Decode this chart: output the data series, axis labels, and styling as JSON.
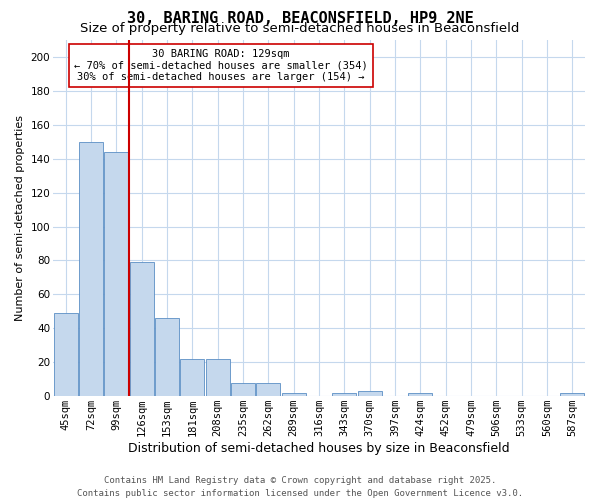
{
  "title1": "30, BARING ROAD, BEACONSFIELD, HP9 2NE",
  "title2": "Size of property relative to semi-detached houses in Beaconsfield",
  "xlabel": "Distribution of semi-detached houses by size in Beaconsfield",
  "ylabel": "Number of semi-detached properties",
  "categories": [
    "45sqm",
    "72sqm",
    "99sqm",
    "126sqm",
    "153sqm",
    "181sqm",
    "208sqm",
    "235sqm",
    "262sqm",
    "289sqm",
    "316sqm",
    "343sqm",
    "370sqm",
    "397sqm",
    "424sqm",
    "452sqm",
    "479sqm",
    "506sqm",
    "533sqm",
    "560sqm",
    "587sqm"
  ],
  "values": [
    49,
    150,
    144,
    79,
    46,
    22,
    22,
    8,
    8,
    2,
    0,
    2,
    3,
    0,
    2,
    0,
    0,
    0,
    0,
    0,
    2
  ],
  "bar_color": "#c5d8ed",
  "bar_edge_color": "#5b8ec4",
  "vline_color": "#cc0000",
  "vline_x": 2.5,
  "annotation_text": "30 BARING ROAD: 129sqm\n← 70% of semi-detached houses are smaller (354)\n30% of semi-detached houses are larger (154) →",
  "annotation_box_color": "#cc0000",
  "ylim": [
    0,
    210
  ],
  "yticks": [
    0,
    20,
    40,
    60,
    80,
    100,
    120,
    140,
    160,
    180,
    200
  ],
  "footer": "Contains HM Land Registry data © Crown copyright and database right 2025.\nContains public sector information licensed under the Open Government Licence v3.0.",
  "bg_color": "#ffffff",
  "plot_bg_color": "#ffffff",
  "grid_color": "#c5d8ed",
  "title1_fontsize": 11,
  "title2_fontsize": 9.5,
  "annotation_fontsize": 7.5,
  "xlabel_fontsize": 9,
  "ylabel_fontsize": 8,
  "footer_fontsize": 6.5,
  "tick_fontsize": 7.5
}
